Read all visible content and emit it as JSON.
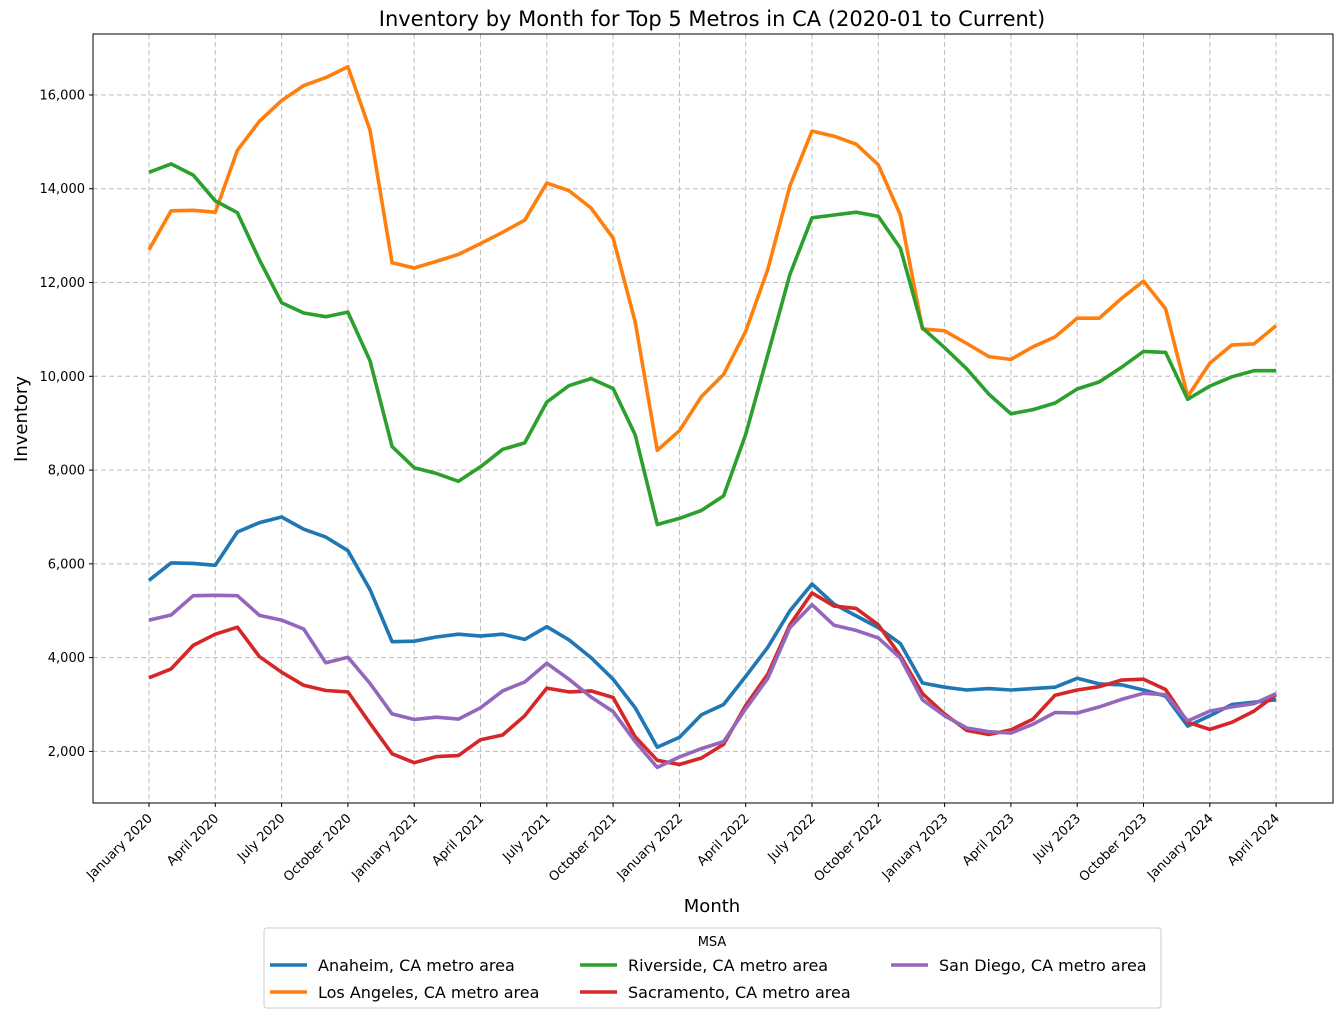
{
  "chart_data": {
    "type": "line",
    "title": "Inventory by Month for Top 5 Metros in CA (2020-01 to Current)",
    "xlabel": "Month",
    "ylabel": "Inventory",
    "ylim": [
      900,
      17300
    ],
    "y_ticks": [
      2000,
      4000,
      6000,
      8000,
      10000,
      12000,
      14000,
      16000
    ],
    "y_tick_labels": [
      "2,000",
      "4,000",
      "6,000",
      "8,000",
      "10,000",
      "12,000",
      "14,000",
      "16,000"
    ],
    "x_tick_indices": [
      0,
      3,
      6,
      9,
      12,
      15,
      18,
      21,
      24,
      27,
      30,
      33,
      36,
      39,
      42,
      45,
      48,
      51
    ],
    "x_tick_labels": [
      "January 2020",
      "April 2020",
      "July 2020",
      "October 2020",
      "January 2021",
      "April 2021",
      "July 2021",
      "October 2021",
      "January 2022",
      "April 2022",
      "July 2022",
      "October 2022",
      "January 2023",
      "April 2023",
      "July 2023",
      "October 2023",
      "January 2024",
      "April 2024"
    ],
    "grid": true,
    "legend": {
      "title": "MSA",
      "placement": "below-center",
      "columns": 3
    },
    "series": [
      {
        "name": "Anaheim, CA metro area",
        "color": "#1f77b4",
        "values": [
          5650,
          6020,
          6010,
          5970,
          6680,
          6880,
          7000,
          6740,
          6570,
          6280,
          5450,
          4340,
          4350,
          4440,
          4500,
          4460,
          4500,
          4390,
          4660,
          4380,
          4000,
          3540,
          2930,
          2090,
          2300,
          2780,
          3000,
          3600,
          4220,
          5000,
          5570,
          5140,
          4890,
          4640,
          4300,
          3460,
          3370,
          3310,
          3340,
          3310,
          3340,
          3370,
          3560,
          3440,
          3420,
          3310,
          3180,
          2540,
          2760,
          3000,
          3050,
          3100
        ]
      },
      {
        "name": "Los Angeles, CA metro area",
        "color": "#ff7f0e",
        "values": [
          12700,
          13530,
          13540,
          13500,
          14820,
          15440,
          15880,
          16200,
          16370,
          16600,
          15250,
          12420,
          12310,
          12450,
          12600,
          12830,
          13070,
          13330,
          14120,
          13960,
          13590,
          12950,
          11160,
          8420,
          8840,
          9570,
          10040,
          10960,
          12280,
          14060,
          15230,
          15120,
          14950,
          14510,
          13440,
          11010,
          10970,
          10700,
          10420,
          10360,
          10630,
          10840,
          11240,
          11240,
          11660,
          12030,
          11440,
          9570,
          10280,
          10670,
          10690,
          11080
        ]
      },
      {
        "name": "Riverside, CA metro area",
        "color": "#2ca02c",
        "values": [
          14350,
          14530,
          14290,
          13740,
          13490,
          12480,
          11570,
          11350,
          11270,
          11370,
          10330,
          8500,
          8050,
          7930,
          7760,
          8070,
          8440,
          8580,
          9450,
          9800,
          9950,
          9740,
          8750,
          6840,
          6970,
          7140,
          7450,
          8760,
          10460,
          12170,
          13380,
          13440,
          13500,
          13410,
          12730,
          11030,
          10610,
          10160,
          9620,
          9200,
          9290,
          9430,
          9730,
          9880,
          10190,
          10530,
          10510,
          9510,
          9790,
          9990,
          10120,
          10120
        ]
      },
      {
        "name": "Sacramento, CA metro area",
        "color": "#d62728",
        "values": [
          3570,
          3760,
          4260,
          4500,
          4650,
          4020,
          3690,
          3410,
          3300,
          3270,
          2600,
          1950,
          1760,
          1890,
          1910,
          2250,
          2350,
          2760,
          3350,
          3270,
          3290,
          3150,
          2310,
          1810,
          1720,
          1860,
          2150,
          2980,
          3650,
          4700,
          5380,
          5100,
          5050,
          4700,
          4040,
          3230,
          2800,
          2450,
          2360,
          2460,
          2690,
          3200,
          3310,
          3380,
          3520,
          3540,
          3320,
          2620,
          2470,
          2620,
          2860,
          3210
        ]
      },
      {
        "name": "San Diego, CA metro area",
        "color": "#9467bd",
        "values": [
          4800,
          4910,
          5320,
          5330,
          5320,
          4900,
          4800,
          4610,
          3890,
          4010,
          3450,
          2800,
          2680,
          2730,
          2690,
          2930,
          3290,
          3480,
          3880,
          3540,
          3160,
          2850,
          2210,
          1660,
          1880,
          2060,
          2210,
          2910,
          3560,
          4640,
          5130,
          4690,
          4580,
          4420,
          3990,
          3100,
          2760,
          2500,
          2420,
          2390,
          2580,
          2830,
          2820,
          2950,
          3110,
          3240,
          3210,
          2650,
          2860,
          2950,
          3020,
          3230
        ]
      }
    ]
  }
}
